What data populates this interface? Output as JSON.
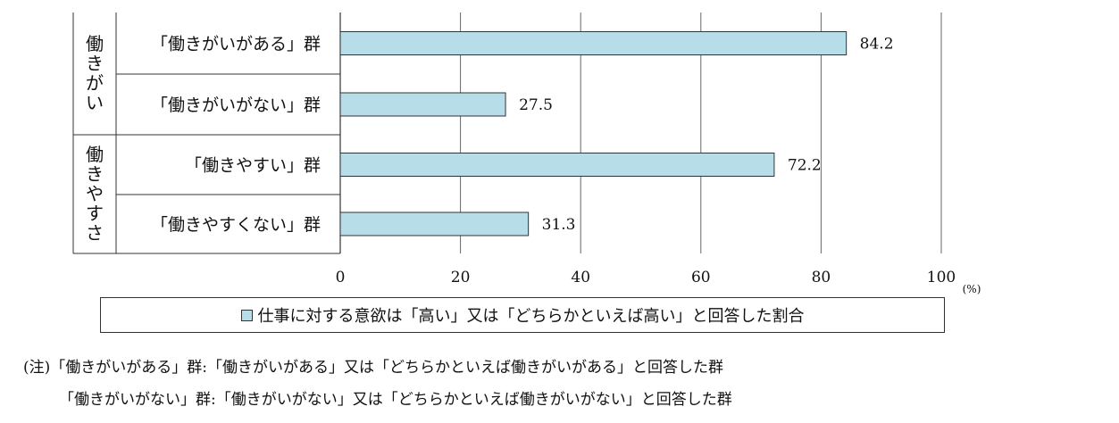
{
  "chart_data": {
    "type": "bar",
    "orientation": "horizontal",
    "groups": [
      {
        "label": "働きがい",
        "categories": [
          "「働きがいがある」群",
          "「働きがいがない」群"
        ]
      },
      {
        "label": "働きやすさ",
        "categories": [
          "「働きやすい」群",
          "「働きやすくない」群"
        ]
      }
    ],
    "categories": [
      "「働きがいがある」群",
      "「働きがいがない」群",
      "「働きやすい」群",
      "「働きやすくない」群"
    ],
    "values": [
      84.2,
      27.5,
      72.2,
      31.3
    ],
    "value_labels": [
      "84.2",
      "27.5",
      "72.2",
      "31.3"
    ],
    "xlim": [
      0,
      100
    ],
    "xticks": [
      0,
      20,
      40,
      60,
      80,
      100
    ],
    "x_unit": "(%)",
    "grid": true,
    "legend": {
      "position": "bottom",
      "label": "仕事に対する意欲は「高い」又は「どちらかといえば高い」と回答した割合"
    },
    "bar_color": "#b7dde8",
    "bar_border_color": "#333333"
  },
  "notes": {
    "line1": "(注)「働きがいがある」群:「働きがいがある」又は「どちらかといえば働きがいがある」と回答した群",
    "line2": "「働きがいがない」群:「働きがいがない」又は「どちらかといえば働きがいがない」と回答した群"
  }
}
